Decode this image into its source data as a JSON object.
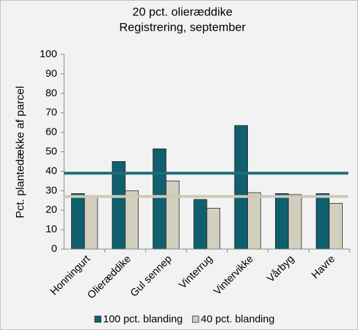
{
  "chart_data": {
    "type": "bar",
    "title": "20 pct. olieræddike",
    "subtitle": "Registrering, september",
    "y_label": "Pct. plantedække af parcel",
    "categories": [
      "Honningurt",
      "Olieræddike",
      "Gul sennep",
      "Vinterrug",
      "Vintervikke",
      "Vårbyg",
      "Havre"
    ],
    "series": [
      {
        "name": "100 pct. blanding",
        "color": "#0f5f6e",
        "values": [
          28.5,
          45,
          51.5,
          25.5,
          63.5,
          28.5,
          28.5
        ]
      },
      {
        "name": "40 pct. blanding",
        "color": "#d2cfbf",
        "values": [
          27,
          30,
          35,
          21,
          29,
          28,
          23.5
        ]
      }
    ],
    "hlines": [
      {
        "value": 39,
        "color": "#1f6b78"
      },
      {
        "value": 27,
        "color": "#cdc9b4"
      }
    ],
    "ylim": [
      0,
      100
    ],
    "yticks": [
      0,
      10,
      20,
      30,
      40,
      50,
      60,
      70,
      80,
      90,
      100
    ],
    "legend": "bottom"
  }
}
